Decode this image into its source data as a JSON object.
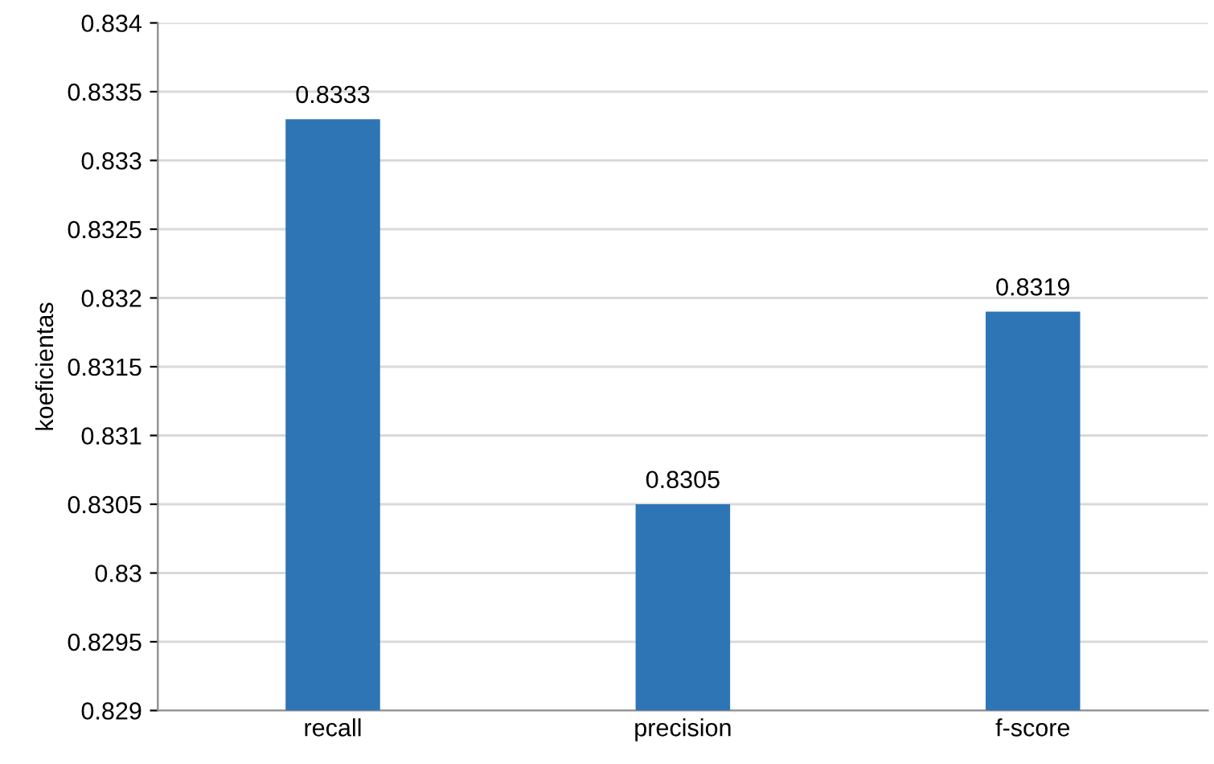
{
  "chart_data": {
    "type": "bar",
    "ylabel": "koeficientas",
    "categories": [
      "recall",
      "precision",
      "f-score"
    ],
    "values": [
      0.8333,
      0.8305,
      0.8319
    ],
    "color": "#2e75b6",
    "ylim": [
      0.829,
      0.834
    ],
    "yticks": [
      0.829,
      0.8295,
      0.83,
      0.8305,
      0.831,
      0.8315,
      0.832,
      0.8325,
      0.833,
      0.8335,
      0.834
    ],
    "grid": "y",
    "data_labels": true
  }
}
